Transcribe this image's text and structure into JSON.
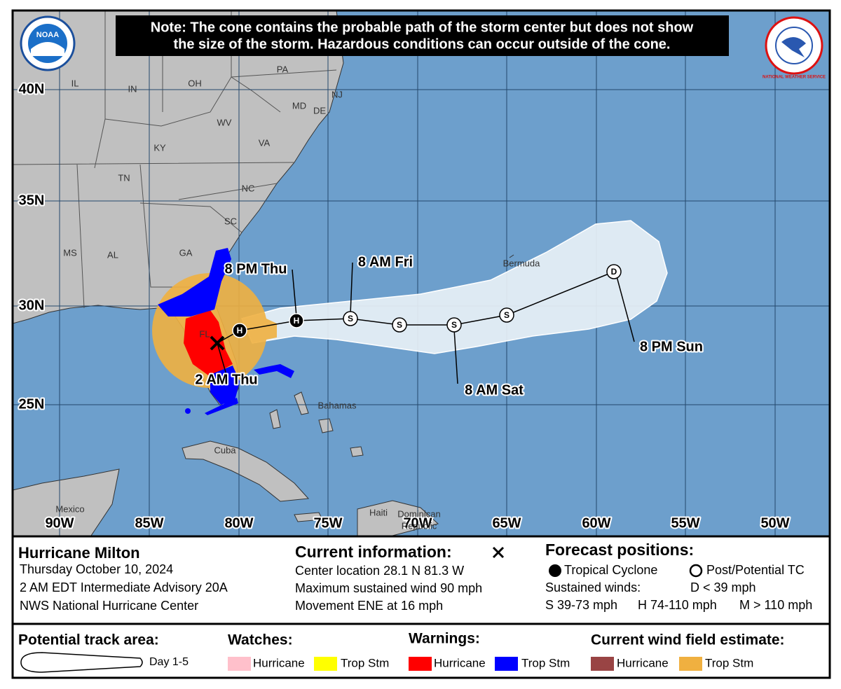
{
  "note": [
    "Note: The cone contains the probable path of the storm center but does not show",
    "the size of the storm. Hazardous conditions can occur outside of the cone."
  ],
  "logos": {
    "noaa": "NOAA",
    "nws": "NATIONAL WEATHER SERVICE"
  },
  "map": {
    "latitude_labels": [
      "40N",
      "35N",
      "30N",
      "25N"
    ],
    "longitude_labels": [
      "90W",
      "85W",
      "80W",
      "75W",
      "70W",
      "65W",
      "60W",
      "55W",
      "50W"
    ],
    "states": [
      "IL",
      "IN",
      "OH",
      "PA",
      "NJ",
      "MD",
      "DE",
      "WV",
      "VA",
      "KY",
      "TN",
      "NC",
      "SC",
      "GA",
      "AL",
      "MS",
      "FL"
    ],
    "places": [
      "Bermuda",
      "Bahamas",
      "Cuba",
      "Mexico",
      "Haiti",
      "Dominican",
      "Republic"
    ],
    "forecast_times": [
      "2 AM Thu",
      "8 PM Thu",
      "8 AM Fri",
      "8 AM Sat",
      "8 PM Sun"
    ],
    "position_markers": [
      "H",
      "H",
      "S",
      "S",
      "S",
      "S",
      "D"
    ]
  },
  "info": {
    "storm": "Hurricane Milton",
    "details": [
      "Thursday October 10, 2024",
      "2 AM EDT Intermediate Advisory 20A",
      "NWS National Hurricane Center"
    ]
  },
  "current": {
    "title": "Current information:",
    "lines": [
      "Center location 28.1 N 81.3 W",
      "Maximum sustained wind 90 mph",
      "Movement ENE at 16 mph"
    ]
  },
  "forecast": {
    "title": "Forecast positions:",
    "tropical_cyclone": "Tropical Cyclone",
    "post_potential": "Post/Potential TC",
    "sustained_winds": "Sustained winds:",
    "categories": [
      "D < 39 mph",
      "S 39-73 mph",
      "H 74-110 mph",
      "M > 110 mph"
    ]
  },
  "legend": {
    "track_area": "Potential track area:",
    "day": "Day 1-5",
    "watches": {
      "title": "Watches:",
      "items": [
        "Hurricane",
        "Trop Stm"
      ]
    },
    "warnings": {
      "title": "Warnings:",
      "items": [
        "Hurricane",
        "Trop Stm"
      ]
    },
    "wind_field": {
      "title": "Current wind field estimate:",
      "items": [
        "Hurricane",
        "Trop Stm"
      ]
    }
  }
}
